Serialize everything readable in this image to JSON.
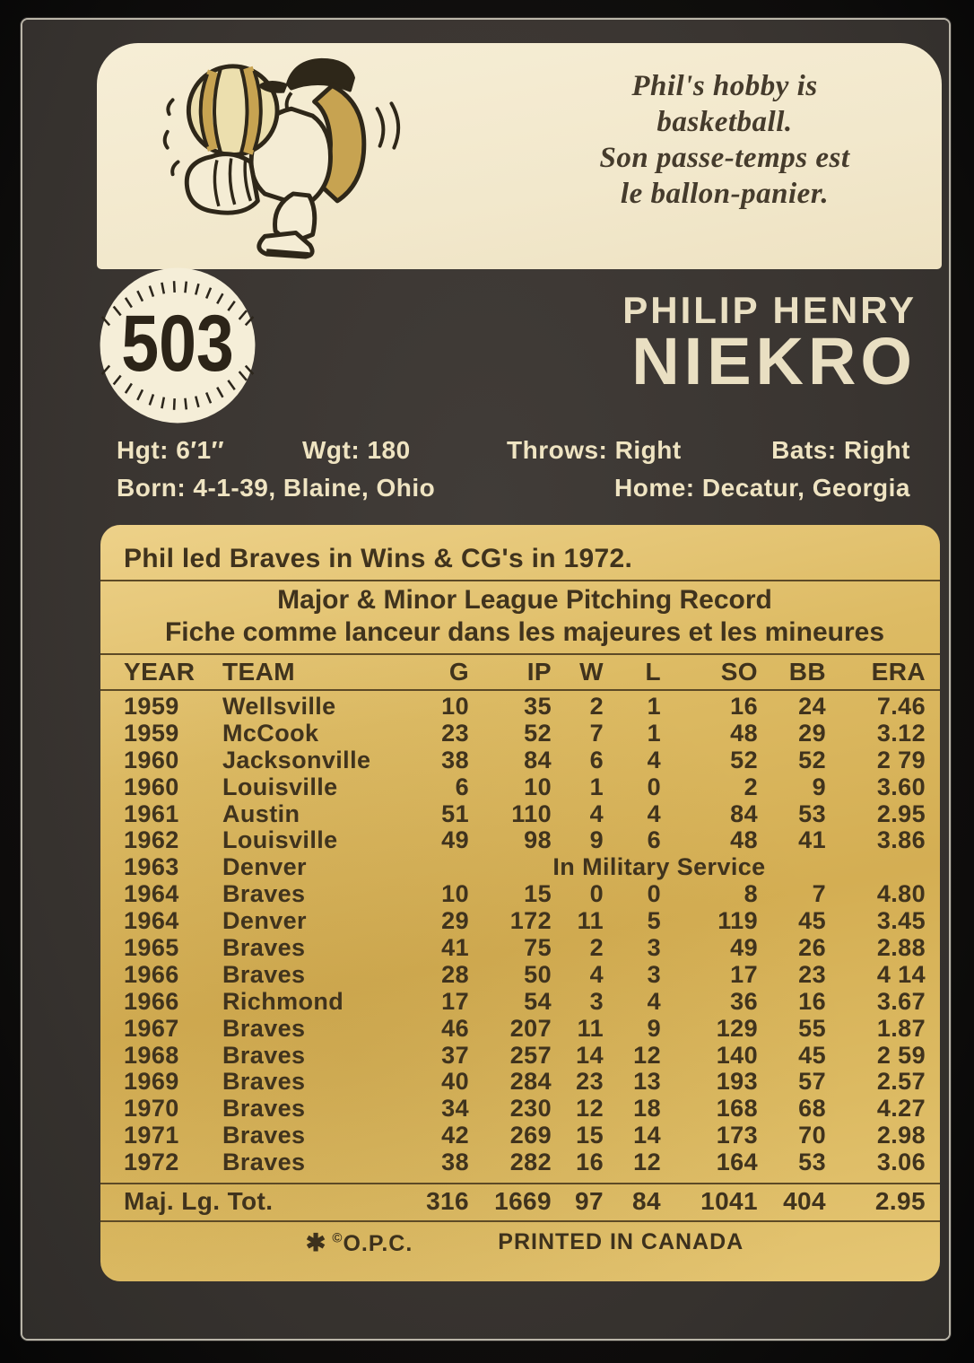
{
  "card": {
    "number": "503",
    "hobby_lines": [
      "Phil's hobby is",
      "basketball.",
      "Son passe-temps est",
      "le ballon-panier."
    ],
    "name": {
      "first": "PHILIP HENRY",
      "last": "NIEKRO"
    },
    "bio": {
      "hgt": "Hgt: 6′1′′",
      "wgt": "Wgt: 180",
      "throws": "Throws: Right",
      "bats": "Bats: Right",
      "born": "Born: 4-1-39, Blaine, Ohio",
      "home": "Home: Decatur, Georgia"
    },
    "highlight": "Phil led Braves in Wins & CG's in 1972.",
    "record_title_en": "Major & Minor League Pitching Record",
    "record_title_fr": "Fiche comme lanceur dans les majeures et les mineures",
    "footer": {
      "mark": "✱",
      "copyright": "©",
      "company": "O.P.C.",
      "printed": "PRINTED IN CANADA"
    }
  },
  "table": {
    "columns": [
      "YEAR",
      "TEAM",
      "G",
      "IP",
      "W",
      "L",
      "SO",
      "BB",
      "ERA"
    ],
    "rows": [
      [
        "1959",
        "Wellsville",
        "10",
        "35",
        "2",
        "1",
        "16",
        "24",
        "7.46"
      ],
      [
        "1959",
        "McCook",
        "23",
        "52",
        "7",
        "1",
        "48",
        "29",
        "3.12"
      ],
      [
        "1960",
        "Jacksonville",
        "38",
        "84",
        "6",
        "4",
        "52",
        "52",
        "2 79"
      ],
      [
        "1960",
        "Louisville",
        "6",
        "10",
        "1",
        "0",
        "2",
        "9",
        "3.60"
      ],
      [
        "1961",
        "Austin",
        "51",
        "110",
        "4",
        "4",
        "84",
        "53",
        "2.95"
      ],
      [
        "1962",
        "Louisville",
        "49",
        "98",
        "9",
        "6",
        "48",
        "41",
        "3.86"
      ],
      [
        "1963",
        "Denver",
        "In Military Service"
      ],
      [
        "1964",
        "Braves",
        "10",
        "15",
        "0",
        "0",
        "8",
        "7",
        "4.80"
      ],
      [
        "1964",
        "Denver",
        "29",
        "172",
        "11",
        "5",
        "119",
        "45",
        "3.45"
      ],
      [
        "1965",
        "Braves",
        "41",
        "75",
        "2",
        "3",
        "49",
        "26",
        "2.88"
      ],
      [
        "1966",
        "Braves",
        "28",
        "50",
        "4",
        "3",
        "17",
        "23",
        "4 14"
      ],
      [
        "1966",
        "Richmond",
        "17",
        "54",
        "3",
        "4",
        "36",
        "16",
        "3.67"
      ],
      [
        "1967",
        "Braves",
        "46",
        "207",
        "11",
        "9",
        "129",
        "55",
        "1.87"
      ],
      [
        "1968",
        "Braves",
        "37",
        "257",
        "14",
        "12",
        "140",
        "45",
        "2 59"
      ],
      [
        "1969",
        "Braves",
        "40",
        "284",
        "23",
        "13",
        "193",
        "57",
        "2.57"
      ],
      [
        "1970",
        "Braves",
        "34",
        "230",
        "12",
        "18",
        "168",
        "68",
        "4.27"
      ],
      [
        "1971",
        "Braves",
        "42",
        "269",
        "15",
        "14",
        "173",
        "70",
        "2.98"
      ],
      [
        "1972",
        "Braves",
        "38",
        "282",
        "16",
        "12",
        "164",
        "53",
        "3.06"
      ]
    ],
    "totals": [
      "Maj. Lg. Tot.",
      "316",
      "1669",
      "97",
      "84",
      "1041",
      "404",
      "2.95"
    ]
  },
  "colors": {
    "card_background": "#3a3531",
    "cream_panel": "#f2e8cc",
    "gold_panel": "#d9b55e",
    "dark_ink": "#40331d",
    "cream_ink": "#efe4c2"
  }
}
